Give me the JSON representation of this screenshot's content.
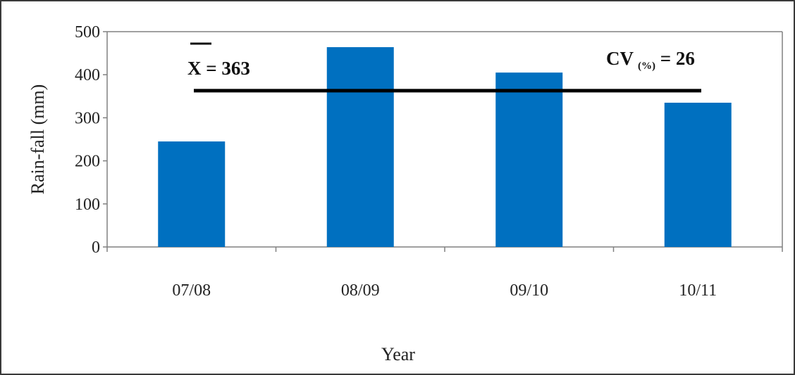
{
  "chart_data": {
    "type": "bar",
    "title": "",
    "xlabel": "Year",
    "ylabel": "Rain-fall (mm)",
    "categories": [
      "07/08",
      "08/09",
      "09/10",
      "10/11"
    ],
    "values": [
      245,
      464,
      405,
      335
    ],
    "ylim": [
      0,
      500
    ],
    "yticks": [
      "0",
      "100",
      "200",
      "300",
      "400",
      "500"
    ],
    "grid": false,
    "legend": "none",
    "bar_color": "#0070C0",
    "mean_line": {
      "value": 363,
      "color": "#000000"
    },
    "annotations": {
      "mean_symbol": "X",
      "mean_text": " = 363",
      "cv_main": "CV",
      "cv_sub": "(%)",
      "cv_text": " = 26"
    }
  }
}
